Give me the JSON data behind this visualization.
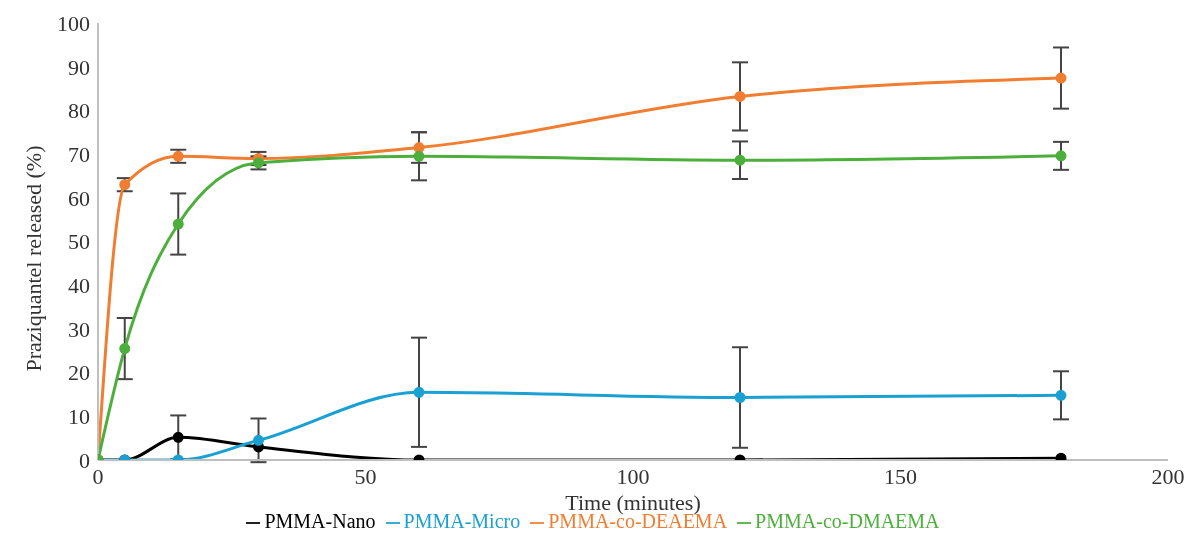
{
  "chart_data": {
    "type": "line",
    "xlabel": "Time (minutes)",
    "ylabel": "Praziquantel released (%)",
    "x": [
      0,
      5,
      15,
      30,
      60,
      120,
      180
    ],
    "series": [
      {
        "name": "PMMA-Nano",
        "color": "#000000",
        "values": [
          0,
          0,
          5.2,
          3,
          0,
          0,
          0.4
        ],
        "errors": [
          null,
          null,
          5,
          null,
          null,
          null,
          null
        ]
      },
      {
        "name": "PMMA-Micro",
        "color": "#1aa0d2",
        "values": [
          0,
          0,
          0,
          4.5,
          15.5,
          14.3,
          14.8
        ],
        "errors": [
          null,
          null,
          null,
          5,
          12.5,
          11.5,
          5.5
        ]
      },
      {
        "name": "PMMA-co-DEAEMA",
        "color": "#f07d30",
        "values": [
          0,
          63,
          69.5,
          69,
          71.5,
          83.2,
          87.4
        ],
        "errors": [
          null,
          1.5,
          1.5,
          1.5,
          3.5,
          7.8,
          7
        ]
      },
      {
        "name": "PMMA-co-DMAEMA",
        "color": "#4caf3c",
        "values": [
          0,
          25.5,
          54,
          68,
          69.5,
          68.6,
          69.6
        ],
        "errors": [
          null,
          7,
          7,
          1.5,
          5.5,
          4.3,
          3.2
        ]
      }
    ],
    "xlim": [
      0,
      200
    ],
    "xticks": [
      0,
      50,
      100,
      150,
      200
    ],
    "ylim": [
      0,
      100
    ],
    "yticks": [
      0,
      10,
      20,
      30,
      40,
      50,
      60,
      70,
      80,
      90,
      100
    ],
    "grid": false,
    "legend": "bottom",
    "marker": "circle",
    "line_style": "solid"
  }
}
